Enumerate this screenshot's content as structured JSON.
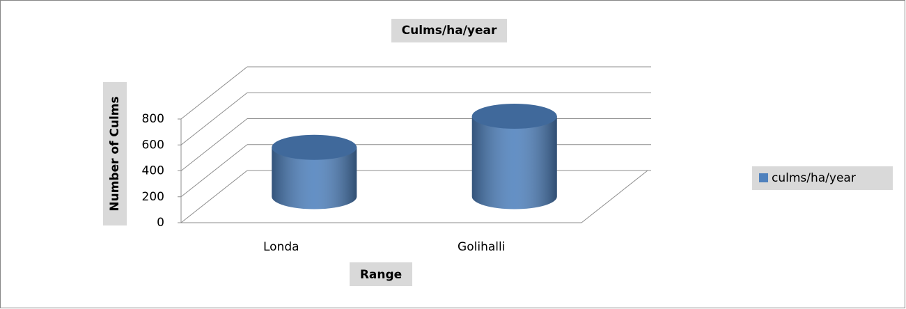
{
  "chart_data": {
    "type": "bar3d",
    "title": "Culms/ha/year",
    "x_label": "Range",
    "y_label": "Number of Culms",
    "categories": [
      "Londa",
      "Golihalli"
    ],
    "series": [
      {
        "name": "culms/ha/year",
        "color": "#4f81bd",
        "values": [
          380,
          620
        ]
      }
    ],
    "ylim": [
      0,
      800
    ],
    "yticks": [
      0,
      200,
      400,
      600,
      800
    ],
    "grid": true,
    "legend": "right"
  }
}
